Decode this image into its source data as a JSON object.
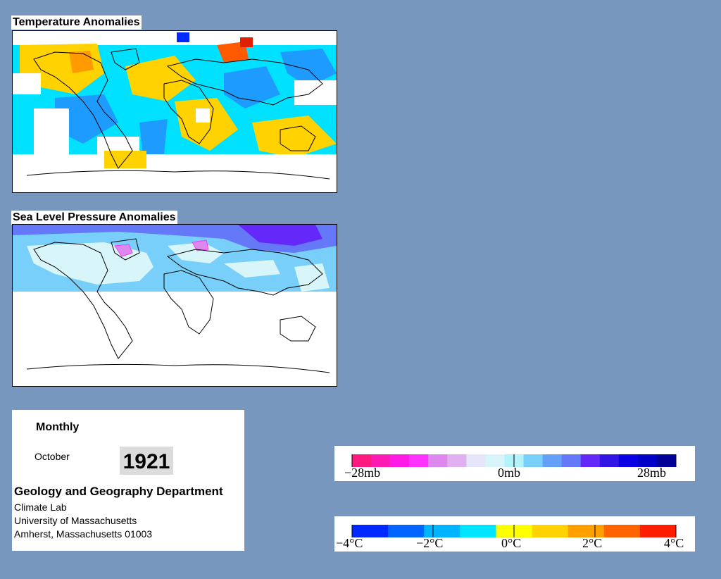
{
  "temperature_panel": {
    "title": "Temperature Anomalies"
  },
  "pressure_panel": {
    "title": "Sea Level Pressure Anomalies"
  },
  "info": {
    "frequency": "Monthly",
    "month": "October",
    "year": "1921",
    "department": "Geology and Geography Department",
    "lab": "Climate Lab",
    "university": "University of Massachusetts",
    "address": "Amherst, Massachusetts 01003"
  },
  "pressure_legend": {
    "labels": [
      "−28mb",
      "0mb",
      "28mb"
    ],
    "colors": [
      "#ff1a80",
      "#ff1ab4",
      "#ff1ae6",
      "#ff33ff",
      "#dd88ee",
      "#e0b0f0",
      "#e6e6fa",
      "#d8f6fa",
      "#b4f2fa",
      "#78d0fa",
      "#64a0f8",
      "#6478f8",
      "#6428f8",
      "#3214e6",
      "#0a00e6",
      "#0000c8",
      "#000096"
    ]
  },
  "temperature_legend": {
    "labels": [
      "−4°C",
      "−2°C",
      "0°C",
      "2°C",
      "4°C"
    ],
    "colors": [
      "#0028ff",
      "#0064ff",
      "#00b4ff",
      "#00e6ff",
      "#ffff00",
      "#ffd200",
      "#ffa000",
      "#ff6400",
      "#ff1e00"
    ]
  },
  "colors": {
    "background": "#7797bf",
    "land_outline": "#000000",
    "temp_cold": "#1e9bff",
    "temp_cool": "#00e1ff",
    "temp_warm": "#ffd200",
    "temp_hot": "#ff5a00",
    "slp_low": "#ff33ff",
    "slp_light": "#b4f2fa",
    "slp_mid": "#78d0fa",
    "slp_high": "#6428f8"
  }
}
